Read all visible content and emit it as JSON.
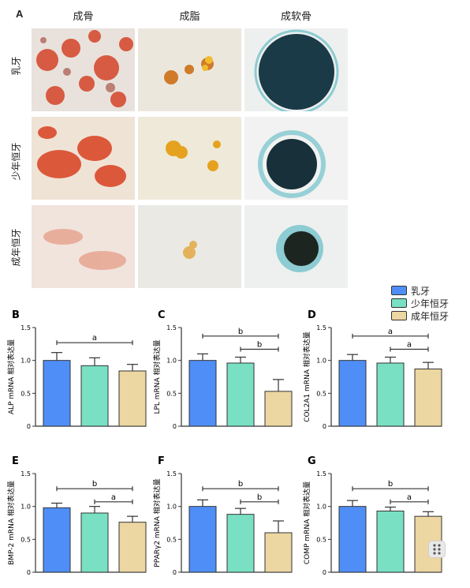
{
  "figure": {
    "panel_a": {
      "letter": "A",
      "columns": [
        "成骨",
        "成脂",
        "成软骨"
      ],
      "rows": [
        "乳牙",
        "少年恒牙",
        "成年恒牙"
      ]
    },
    "legend": {
      "items": [
        {
          "label": "乳牙",
          "color": "#4f8ef7"
        },
        {
          "label": "少年恒牙",
          "color": "#79e0c3"
        },
        {
          "label": "成年恒牙",
          "color": "#ecd6a1"
        }
      ]
    },
    "colors": {
      "osteo": "#d23a1c",
      "adipo": "#e0a020",
      "chondro": "#1b3a48",
      "chondro_stain": "#2aa7b5"
    }
  },
  "chart_data": [
    {
      "letter": "B",
      "type": "bar",
      "ylabel": "ALP mRNA 相对表达量",
      "categories": [
        "乳牙",
        "少年恒牙",
        "成年恒牙"
      ],
      "values": [
        1.0,
        0.92,
        0.84
      ],
      "errors": [
        0.12,
        0.12,
        0.1
      ],
      "yticks": [
        "0",
        "0.5",
        "1.0",
        "1.5"
      ],
      "ylim": [
        0,
        1.5
      ],
      "sig": [
        {
          "from": 0,
          "to": 2,
          "label": "a",
          "y": 1.27
        }
      ]
    },
    {
      "letter": "C",
      "type": "bar",
      "ylabel": "LPL mRNA 相对表达量",
      "categories": [
        "乳牙",
        "少年恒牙",
        "成年恒牙"
      ],
      "values": [
        1.0,
        0.96,
        0.53
      ],
      "errors": [
        0.1,
        0.09,
        0.18
      ],
      "yticks": [
        "0",
        "0.5",
        "1.0",
        "1.5"
      ],
      "ylim": [
        0,
        1.5
      ],
      "sig": [
        {
          "from": 0,
          "to": 2,
          "label": "b",
          "y": 1.37
        },
        {
          "from": 1,
          "to": 2,
          "label": "b",
          "y": 1.17
        }
      ]
    },
    {
      "letter": "D",
      "type": "bar",
      "ylabel": "COL2A1 mRNA 相对表达量",
      "categories": [
        "乳牙",
        "少年恒牙",
        "成年恒牙"
      ],
      "values": [
        1.0,
        0.96,
        0.87
      ],
      "errors": [
        0.09,
        0.09,
        0.1
      ],
      "yticks": [
        "0",
        "0.5",
        "1.0",
        "1.5"
      ],
      "ylim": [
        0,
        1.5
      ],
      "sig": [
        {
          "from": 0,
          "to": 2,
          "label": "a",
          "y": 1.37
        },
        {
          "from": 1,
          "to": 2,
          "label": "a",
          "y": 1.17
        }
      ]
    },
    {
      "letter": "E",
      "type": "bar",
      "ylabel": "BMP-2 mRNA 相对表达量",
      "categories": [
        "乳牙",
        "少年恒牙",
        "成年恒牙"
      ],
      "values": [
        0.98,
        0.9,
        0.76
      ],
      "errors": [
        0.07,
        0.1,
        0.09
      ],
      "yticks": [
        "0",
        "0.5",
        "1.0",
        "1.5"
      ],
      "ylim": [
        0,
        1.5
      ],
      "sig": [
        {
          "from": 0,
          "to": 2,
          "label": "b",
          "y": 1.27
        },
        {
          "from": 1,
          "to": 2,
          "label": "a",
          "y": 1.07
        }
      ]
    },
    {
      "letter": "F",
      "type": "bar",
      "ylabel": "PPARγ2 mRNA 相对表达量",
      "categories": [
        "乳牙",
        "少年恒牙",
        "成年恒牙"
      ],
      "values": [
        1.0,
        0.88,
        0.6
      ],
      "errors": [
        0.1,
        0.09,
        0.18
      ],
      "yticks": [
        "0",
        "0.5",
        "1.0",
        "1.5"
      ],
      "ylim": [
        0,
        1.5
      ],
      "sig": [
        {
          "from": 0,
          "to": 2,
          "label": "b",
          "y": 1.27
        },
        {
          "from": 1,
          "to": 2,
          "label": "b",
          "y": 1.07
        }
      ]
    },
    {
      "letter": "G",
      "type": "bar",
      "ylabel": "COMP mRNA 相对表达量",
      "categories": [
        "乳牙",
        "少年恒牙",
        "成年恒牙"
      ],
      "values": [
        1.0,
        0.93,
        0.85
      ],
      "errors": [
        0.09,
        0.06,
        0.07
      ],
      "yticks": [
        "0",
        "0.5",
        "1.0",
        "1.5"
      ],
      "ylim": [
        0,
        1.5
      ],
      "sig": [
        {
          "from": 0,
          "to": 2,
          "label": "b",
          "y": 1.27
        },
        {
          "from": 1,
          "to": 2,
          "label": "a",
          "y": 1.07
        }
      ]
    }
  ]
}
